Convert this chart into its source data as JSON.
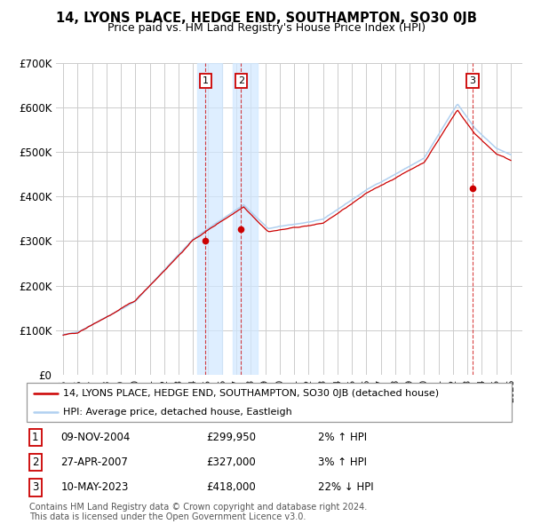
{
  "title": "14, LYONS PLACE, HEDGE END, SOUTHAMPTON, SO30 0JB",
  "subtitle": "Price paid vs. HM Land Registry's House Price Index (HPI)",
  "ylim": [
    0,
    700000
  ],
  "yticks": [
    0,
    100000,
    200000,
    300000,
    400000,
    500000,
    600000,
    700000
  ],
  "ytick_labels": [
    "£0",
    "£100K",
    "£200K",
    "£300K",
    "£400K",
    "£500K",
    "£600K",
    "£700K"
  ],
  "xlim_start": 1994.5,
  "xlim_end": 2026.8,
  "hpi_color": "#b0d0f0",
  "price_color": "#cc0000",
  "grid_color": "#cccccc",
  "span1_color": "#d0e8ff",
  "transactions": [
    {
      "label": "1",
      "date": "09-NOV-2004",
      "price": 299950,
      "pct": "2%",
      "direction": "↑",
      "year": 2004.86
    },
    {
      "label": "2",
      "date": "27-APR-2007",
      "price": 327000,
      "pct": "3%",
      "direction": "↑",
      "year": 2007.32
    },
    {
      "label": "3",
      "date": "10-MAY-2023",
      "price": 418000,
      "pct": "22%",
      "direction": "↓",
      "year": 2023.36
    }
  ],
  "legend_line1": "14, LYONS PLACE, HEDGE END, SOUTHAMPTON, SO30 0JB (detached house)",
  "legend_line2": "HPI: Average price, detached house, Eastleigh",
  "footer1": "Contains HM Land Registry data © Crown copyright and database right 2024.",
  "footer2": "This data is licensed under the Open Government Licence v3.0."
}
